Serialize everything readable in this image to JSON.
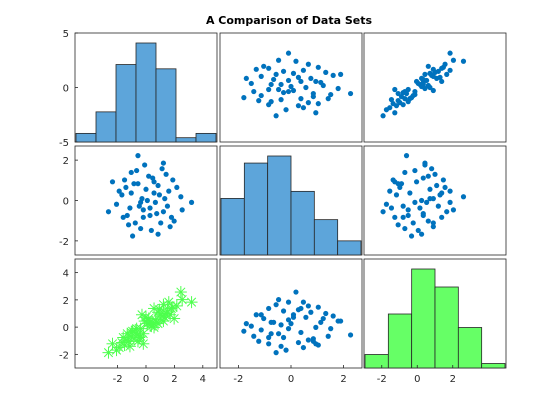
{
  "chart_data": {
    "type": "scatter",
    "title": "A Comparison of Data Sets",
    "layout": "3x3 scatter-plot matrix (plotmatrix)",
    "series_colors": {
      "default": "#0072BD",
      "highlight": "#4DFF4D"
    },
    "variables": [
      {
        "index": 1,
        "range": [
          -5,
          5
        ],
        "ticks": [
          -5,
          0,
          5
        ],
        "hist": {
          "bins": [
            -3,
            -2,
            -1,
            0,
            1,
            2,
            3,
            4
          ],
          "counts": [
            2,
            7,
            18,
            23,
            17,
            1,
            2
          ]
        }
      },
      {
        "index": 2,
        "range": [
          -2.7,
          2.7
        ],
        "ticks": [
          -2,
          0,
          2
        ],
        "hist": {
          "bins": [
            -3,
            -2,
            -1,
            0,
            1,
            2,
            3
          ],
          "counts": [
            8,
            13,
            14,
            9,
            5,
            2
          ]
        }
      },
      {
        "index": 3,
        "range": [
          -3,
          5
        ],
        "ticks": [
          -2,
          0,
          2,
          4
        ],
        "hist": {
          "bins": [
            -3,
            -2,
            -1,
            0,
            1,
            2,
            3
          ],
          "counts": [
            3,
            12,
            22,
            18,
            9,
            1
          ],
          "color": "#66FF66"
        }
      }
    ],
    "row_ticks": [
      [
        "-5",
        "0",
        "5"
      ],
      [
        "-2",
        "0",
        "2"
      ],
      [
        "-2",
        "0",
        "2",
        "4"
      ]
    ],
    "col_ticks": [
      [
        "-2",
        "0",
        "2",
        "4"
      ],
      [
        "-2",
        "0",
        "2"
      ],
      [
        "-2",
        "0",
        "2"
      ]
    ],
    "samples": [
      [
        -0.2,
        -0.9,
        -1.4
      ],
      [
        0.5,
        1.2,
        0.3
      ],
      [
        -1.1,
        0.4,
        -0.5
      ],
      [
        1.3,
        -0.6,
        1.7
      ],
      [
        0.1,
        0.0,
        0.2
      ],
      [
        -0.7,
        1.6,
        -0.2
      ],
      [
        2.1,
        -1.1,
        0.6
      ],
      [
        -1.8,
        0.3,
        -1.3
      ],
      [
        0.9,
        0.8,
        1.1
      ],
      [
        -0.4,
        -1.5,
        -0.8
      ],
      [
        1.7,
        0.5,
        1.9
      ],
      [
        -2.2,
        -0.2,
        -1.9
      ],
      [
        0.3,
        -0.4,
        0.1
      ],
      [
        -0.9,
        0.9,
        -1.0
      ],
      [
        1.1,
        -1.2,
        0.9
      ],
      [
        -1.4,
        -0.8,
        -0.6
      ],
      [
        2.6,
        0.2,
        2.7
      ],
      [
        -0.1,
        1.9,
        0.4
      ],
      [
        0.7,
        -0.1,
        0.5
      ],
      [
        -1.6,
        1.1,
        -1.5
      ],
      [
        1.5,
        1.4,
        1.0
      ],
      [
        -0.5,
        -0.3,
        -0.9
      ],
      [
        0.0,
        0.6,
        0.7
      ],
      [
        -2.8,
        -0.6,
        -2.1
      ],
      [
        1.9,
        -0.9,
        1.4
      ],
      [
        -1.0,
        -1.9,
        -0.4
      ],
      [
        0.6,
        1.0,
        -0.1
      ],
      [
        -0.3,
        0.1,
        0.9
      ],
      [
        2.3,
        0.7,
        1.6
      ],
      [
        -1.2,
        -0.4,
        -1.6
      ],
      [
        0.4,
        -1.6,
        0.0
      ],
      [
        1.0,
        0.3,
        1.3
      ],
      [
        -0.6,
        2.4,
        -0.7
      ],
      [
        3.4,
        -0.1,
        1.9
      ],
      [
        -1.5,
        0.7,
        -1.1
      ],
      [
        0.8,
        -0.7,
        0.3
      ],
      [
        -2.0,
        0.5,
        -1.7
      ],
      [
        1.2,
        1.7,
        0.8
      ],
      [
        -0.8,
        -1.2,
        -0.3
      ],
      [
        0.2,
        1.3,
        0.6
      ],
      [
        1.6,
        -0.3,
        1.2
      ],
      [
        -1.3,
        -1.3,
        -1.2
      ],
      [
        2.0,
        1.1,
        1.5
      ],
      [
        -0.2,
        -0.5,
        -0.6
      ],
      [
        0.9,
        -1.8,
        0.2
      ],
      [
        -1.7,
        -0.9,
        -0.9
      ],
      [
        1.4,
        0.1,
        0.7
      ],
      [
        -2.5,
        1.0,
        -1.4
      ],
      [
        0.6,
        0.4,
        1.4
      ],
      [
        -0.4,
        -0.1,
        -0.2
      ],
      [
        1.8,
        -1.4,
        0.9
      ],
      [
        -1.1,
        1.5,
        -0.8
      ],
      [
        2.7,
        -0.5,
        2.1
      ],
      [
        -0.6,
        0.9,
        -1.2
      ],
      [
        0.3,
        -0.8,
        0.3
      ],
      [
        1.3,
        2.0,
        0.4
      ]
    ]
  }
}
